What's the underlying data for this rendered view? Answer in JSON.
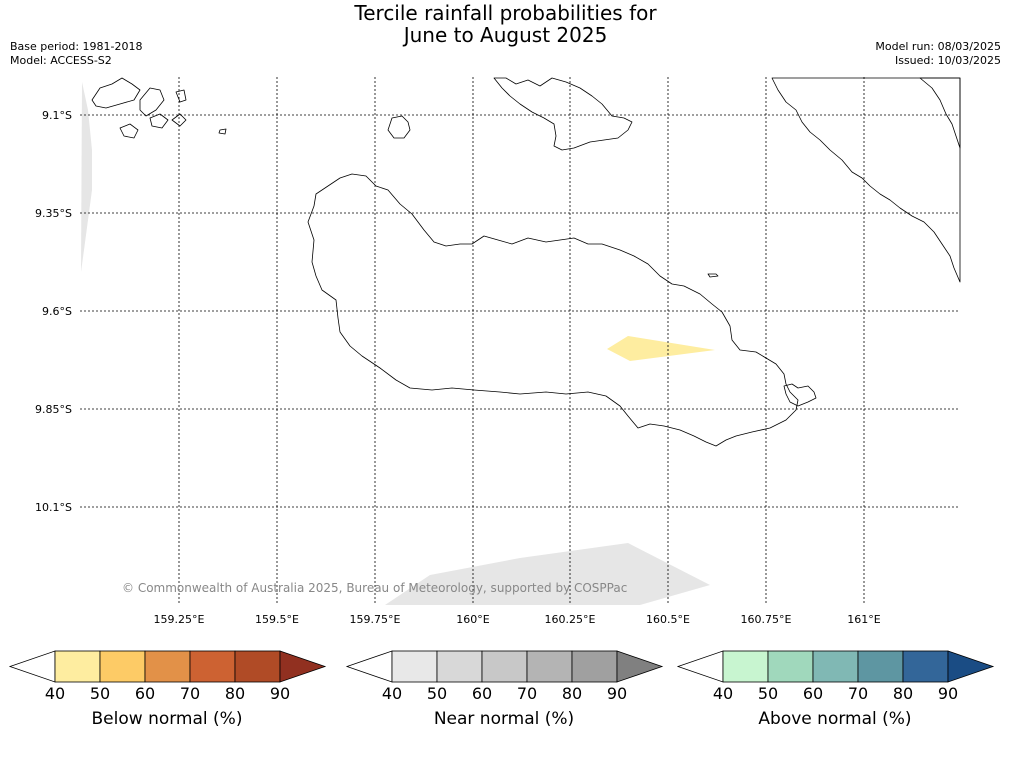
{
  "header": {
    "title_line1": "Tercile rainfall probabilities for",
    "title_line2": "June to August 2025",
    "base_period": "Base period: 1981-2018",
    "model": "Model: ACCESS-S2",
    "model_run": "Model run: 08/03/2025",
    "issued": "Issued: 10/03/2025"
  },
  "map": {
    "lat_labels": [
      "9.1°S",
      "9.35°S",
      "9.6°S",
      "9.85°S",
      "10.1°S"
    ],
    "lon_labels": [
      "159.25°E",
      "159.5°E",
      "159.75°E",
      "160°E",
      "160.25°E",
      "160.5°E",
      "160.75°E",
      "161°E"
    ],
    "copyright": "© Commonwealth of Australia 2025, Bureau of Meteorology, supported by COSPPac"
  },
  "colorbars": [
    {
      "label": "Below normal (%)",
      "ticks": [
        "40",
        "50",
        "60",
        "70",
        "80",
        "90"
      ],
      "colors": [
        "#ffffff",
        "#feeda0",
        "#fdcb66",
        "#e29148",
        "#cd6232",
        "#b04b26",
        "#913020"
      ]
    },
    {
      "label": "Near normal (%)",
      "ticks": [
        "40",
        "50",
        "60",
        "70",
        "80",
        "90"
      ],
      "colors": [
        "#ffffff",
        "#e8e8e8",
        "#d8d8d8",
        "#c8c8c8",
        "#b4b4b4",
        "#a0a0a0",
        "#808080"
      ]
    },
    {
      "label": "Above normal (%)",
      "ticks": [
        "40",
        "50",
        "60",
        "70",
        "80",
        "90"
      ],
      "colors": [
        "#ffffff",
        "#c8f5d0",
        "#a0d8bc",
        "#80b8b4",
        "#5e96a2",
        "#336699",
        "#1a4c84"
      ]
    }
  ]
}
